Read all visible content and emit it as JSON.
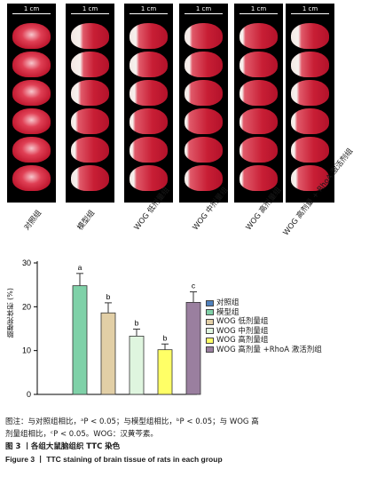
{
  "figure": {
    "scale_label": "1 cm",
    "panel_count": 6,
    "group_labels": [
      "对照组",
      "模型组",
      "WOG 低剂量组",
      "WOG 中剂量组",
      "WOG 高剂量组",
      "WOG 高剂量 + RhoA 激活剂组"
    ]
  },
  "chart_data": {
    "type": "bar",
    "categories": [
      "对照组",
      "模型组",
      "WOG 低剂量组",
      "WOG 中剂量组",
      "WOG 高剂量组",
      "WOG 高剂量 +RhoA 激活剂组"
    ],
    "values": [
      0,
      24.8,
      18.6,
      13.3,
      10.2,
      21.0
    ],
    "errors": [
      0,
      2.8,
      2.3,
      1.6,
      1.3,
      2.4
    ],
    "significance": [
      "",
      "a",
      "b",
      "b",
      "b",
      "c"
    ],
    "colors": [
      "#4f81bd",
      "#7fd1a8",
      "#e2cfa6",
      "#dff5df",
      "#ffff66",
      "#9a7f9f"
    ],
    "ylabel": "脑梗死体积 (%)",
    "ylim": [
      0,
      30
    ],
    "yticks": [
      0,
      10,
      20,
      30
    ],
    "legend": [
      "对照组",
      "模型组",
      "WOG 低剂量组",
      "WOG 中剂量组",
      "WOG 高剂量组",
      "WOG 高剂量 +RhoA 激活剂组"
    ],
    "legend_position": "right"
  },
  "caption": {
    "note_line1": "图注：与对照组相比，ᵃP < 0.05；与模型组相比，ᵇP < 0.05；与 WOG 高",
    "note_line2": "剂量组相比，ᶜP < 0.05。WOG：汉黄芩素。",
    "title_cn": "图 3 丨各组大鼠脑组织 TTC 染色",
    "title_en": "Figure 3 丨 TTC staining of brain tissue of rats in each group"
  }
}
